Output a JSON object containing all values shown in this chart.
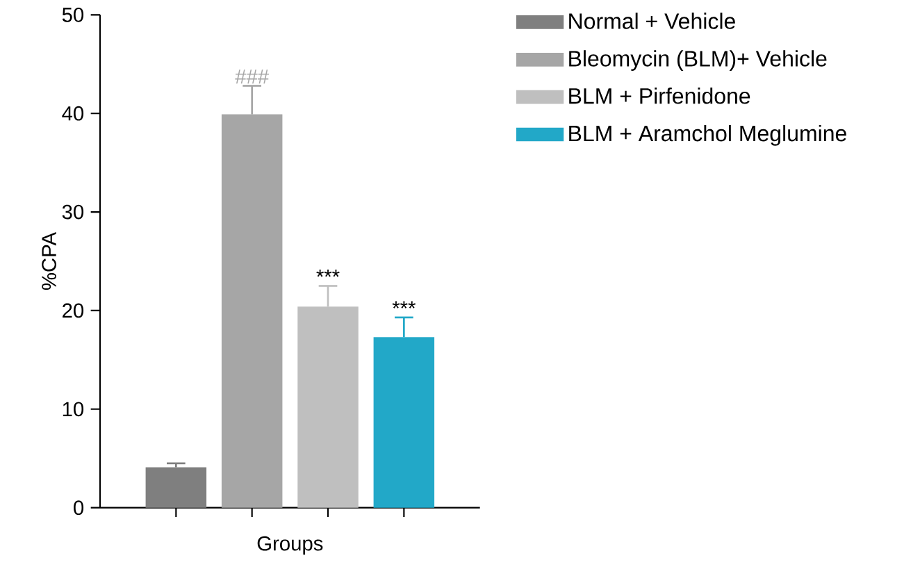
{
  "chart_data": {
    "type": "bar",
    "xlabel": "Groups",
    "ylabel": "%CPA",
    "categories": [
      null
    ],
    "series": [
      {
        "name": "Normal + Vehicle",
        "color": "#7f7f7f",
        "values": [
          4.1
        ],
        "errors": [
          0.4
        ]
      },
      {
        "name": "Bleomycin (BLM)+ Vehicle",
        "color": "#a6a6a6",
        "values": [
          39.9
        ],
        "errors": [
          2.9
        ],
        "value_labels": [
          "###"
        ]
      },
      {
        "name": "BLM + Pirfenidone",
        "color": "#bfbfbf",
        "values": [
          20.4
        ],
        "errors": [
          2.1
        ],
        "value_labels": [
          "***"
        ]
      },
      {
        "name": "BLM + Aramchol Meglumine",
        "color": "#22a8c8",
        "values": [
          17.3
        ],
        "errors": [
          2.0
        ],
        "value_labels": [
          "***"
        ]
      }
    ],
    "ylim": [
      0,
      50
    ],
    "yticks": [
      0,
      10,
      20,
      30,
      40,
      50
    ],
    "legend": "top right",
    "grid": false
  }
}
